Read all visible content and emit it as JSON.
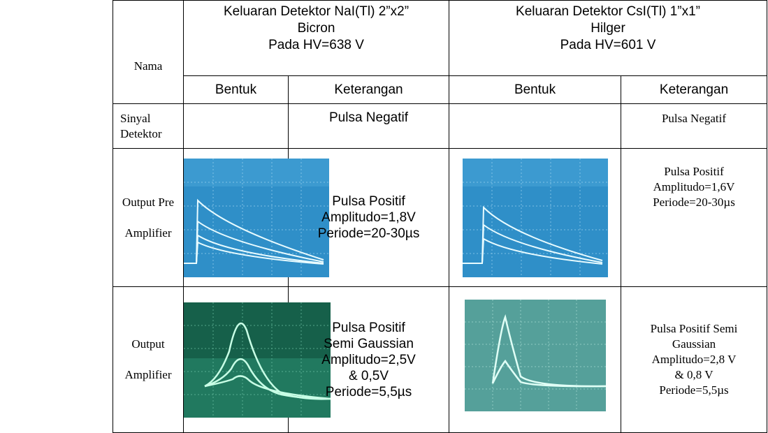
{
  "table": {
    "header": {
      "nama": "Nama",
      "groups": [
        {
          "lines": [
            "Keluaran Detektor NaI(Tl) 2”x2”",
            "Bicron",
            "Pada HV=638 V"
          ]
        },
        {
          "lines": [
            "Keluaran Detektor CsI(Tl) 1”x1”",
            "Hilger",
            "Pada HV=601 V"
          ]
        }
      ],
      "subheaders": [
        "Bentuk",
        "Keterangan",
        "Bentuk",
        "Keterangan"
      ]
    },
    "rows": [
      {
        "name": [
          "Sinyal",
          "Detektor"
        ],
        "notes": [
          [
            "Pulsa Negatif"
          ],
          [
            "Pulsa Negatif"
          ]
        ]
      },
      {
        "name": [
          "Output Pre",
          "Amplifier"
        ],
        "notes": [
          [
            "Pulsa Positif",
            "Amplitudo=1,8V",
            "Periode=20-30µs"
          ],
          [
            "Pulsa Positif",
            "Amplitudo=1,6V",
            "Periode=20-30µs"
          ]
        ]
      },
      {
        "name": [
          "Output",
          "Amplifier"
        ],
        "notes": [
          [
            "Pulsa Positif",
            "Semi Gaussian",
            "Amplitudo=2,5V",
            "& 0,5V",
            "Periode=5,5µs"
          ],
          [
            "Pulsa Positif Semi",
            "Gaussian",
            "Amplitudo=2,8 V",
            "& 0,8 V",
            "Periode=5,5µs"
          ]
        ]
      }
    ]
  }
}
